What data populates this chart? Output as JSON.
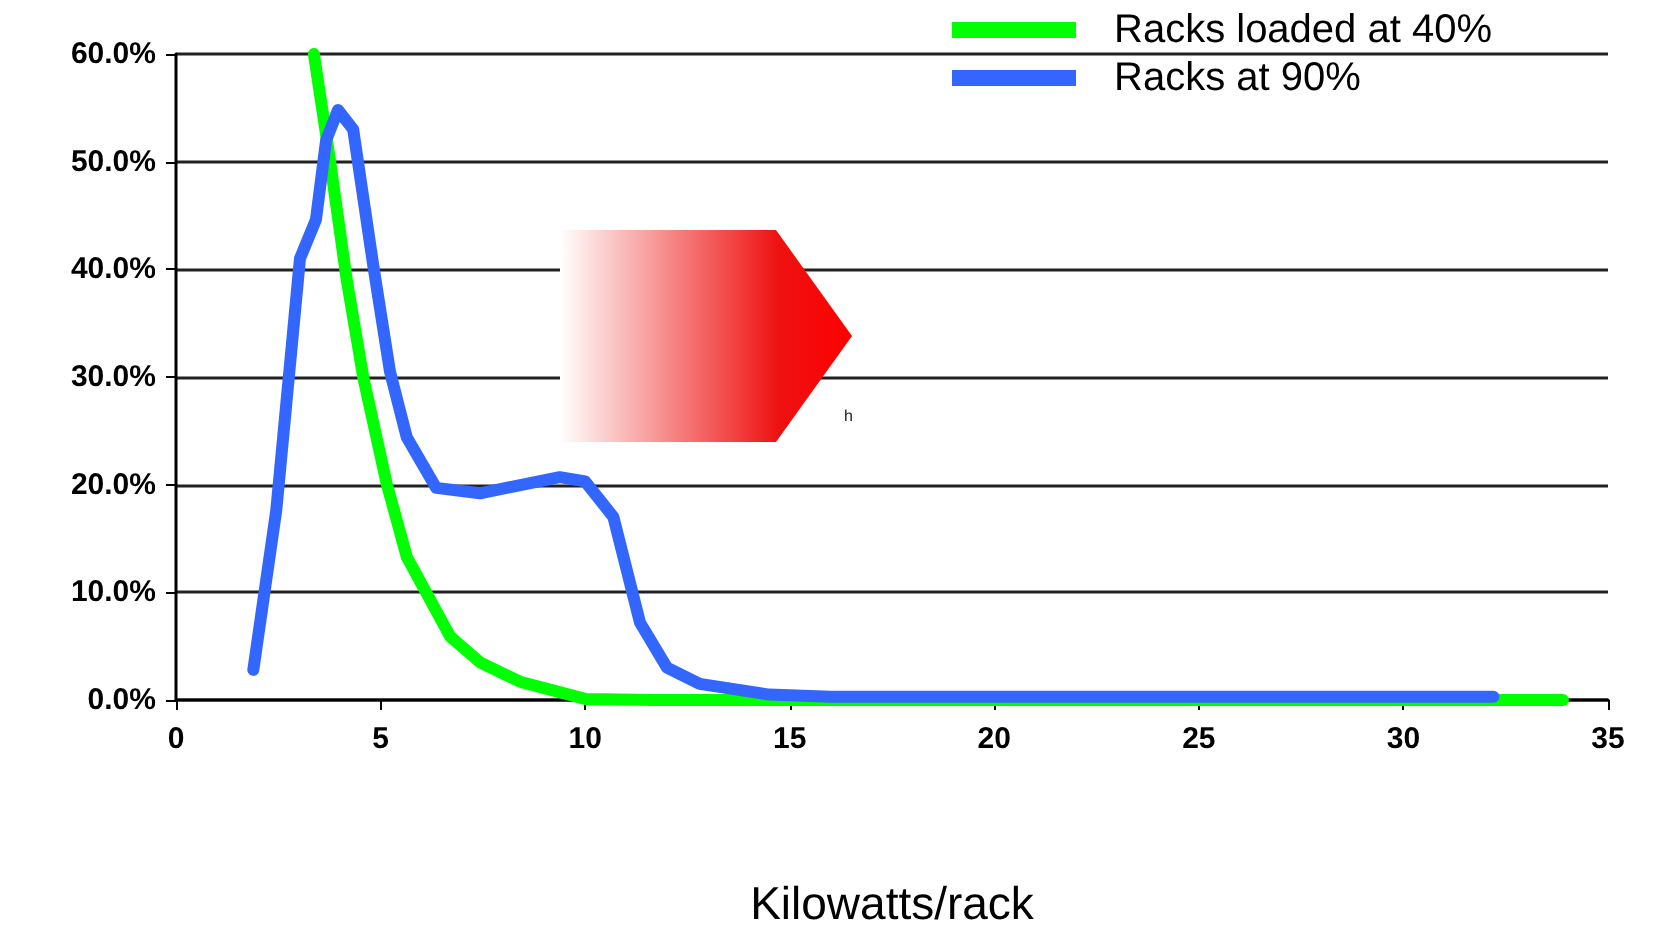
{
  "chart_data": {
    "type": "line",
    "xlabel": "Kilowatts/rack",
    "xlim": [
      0,
      35
    ],
    "xticks": [
      0,
      5,
      10,
      15,
      20,
      25,
      30,
      35
    ],
    "ylim": [
      0,
      60
    ],
    "yticks": [
      {
        "value": 0,
        "label": "0.0%"
      },
      {
        "value": 10,
        "label": "10.0%"
      },
      {
        "value": 20,
        "label": "20.0%"
      },
      {
        "value": 30,
        "label": "30.0%"
      },
      {
        "value": 40,
        "label": "40.0%"
      },
      {
        "value": 50,
        "label": "50.0%"
      },
      {
        "value": 60,
        "label": "60.0%"
      }
    ],
    "grid": "y",
    "legend": "top right",
    "marker": "none",
    "line_style": "solid",
    "annotations": [
      "h"
    ],
    "series": [
      {
        "name": "Racks loaded at 40%",
        "color": "#00ff00",
        "x": [
          3.37,
          3.76,
          4.17,
          4.58,
          5.15,
          5.64,
          6.7,
          7.43,
          8.41,
          10,
          11.7,
          15,
          20,
          25,
          30,
          33.9
        ],
        "values": [
          60,
          50.2,
          39.1,
          29.9,
          20.1,
          13.3,
          5.9,
          3.5,
          1.7,
          0.1,
          0,
          0,
          0,
          0,
          0,
          0
        ]
      },
      {
        "name": "Racks at 90%",
        "color": "#3366ff",
        "x": [
          1.89,
          2.45,
          3.03,
          3.42,
          3.67,
          3.96,
          4.33,
          4.82,
          5.23,
          5.64,
          6.36,
          7.43,
          9.38,
          10,
          10.69,
          11.34,
          12,
          12.8,
          14.5,
          16,
          20,
          25,
          32.2
        ],
        "values": [
          2.8,
          17.6,
          41,
          44.6,
          52,
          54.8,
          53,
          40.4,
          30.5,
          24.4,
          19.7,
          19.2,
          20.7,
          20.3,
          17,
          7.2,
          3,
          1.5,
          0.5,
          0.3,
          0.3,
          0.3,
          0.3
        ]
      }
    ]
  }
}
